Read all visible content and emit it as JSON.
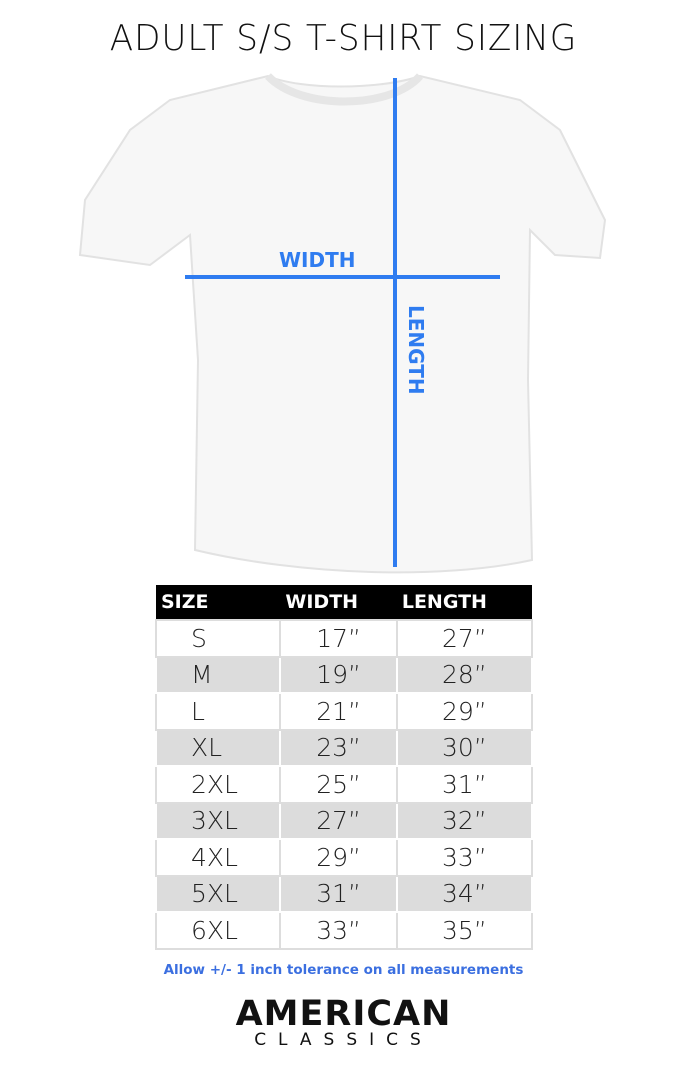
{
  "title": "ADULT S/S T-SHIRT SIZING",
  "diagram": {
    "width_label": "WIDTH",
    "length_label": "LENGTH",
    "line_color": "#2f7cf0"
  },
  "table": {
    "headers": [
      "SIZE",
      "WIDTH",
      "LENGTH"
    ],
    "rows": [
      [
        "S",
        "17”",
        "27”"
      ],
      [
        "M",
        "19”",
        "28”"
      ],
      [
        "L",
        "21”",
        "29”"
      ],
      [
        "XL",
        "23”",
        "30”"
      ],
      [
        "2XL",
        "25”",
        "31”"
      ],
      [
        "3XL",
        "27”",
        "32”"
      ],
      [
        "4XL",
        "29”",
        "33”"
      ],
      [
        "5XL",
        "31”",
        "34”"
      ],
      [
        "6XL",
        "33”",
        "35”"
      ]
    ]
  },
  "tolerance": "Allow +/- 1 inch tolerance on all measurements",
  "logo": {
    "line1": "AMERICAN",
    "line2": "CLASSICS"
  }
}
